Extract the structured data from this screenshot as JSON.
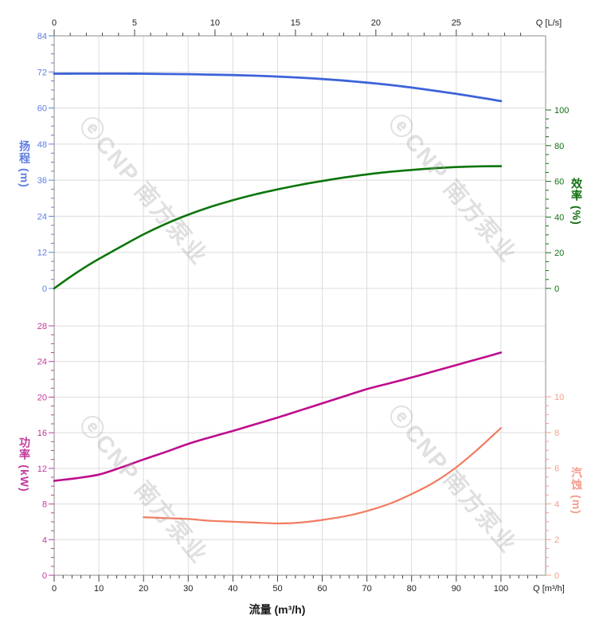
{
  "watermark": {
    "text": "ⓔCNP 南方泵业"
  },
  "colors": {
    "head_curve": "#3d63d9",
    "head_text": "#5e7de2",
    "efficiency_curve": "#0b750b",
    "efficiency_text": "#116f11",
    "power_curve": "#be0d8c",
    "power_text": "#c33a9d",
    "npsh_curve": "#f27b60",
    "npsh_text": "#f59c8e",
    "flow_text": "#222222",
    "grid": "#dcdcdc",
    "frame": "#a0a0a0",
    "dark_tick": "#444444"
  },
  "flow_axis_bottom": {
    "title": "流量 (m³/h)",
    "end_label": "Q [m³/h]",
    "min": 0,
    "max": 110,
    "majors": [
      0,
      10,
      20,
      30,
      40,
      50,
      60,
      70,
      80,
      90,
      100
    ],
    "minor_step": 2
  },
  "flow_axis_top": {
    "end_label": "Q [L/s]",
    "min": 0,
    "max": 30.5,
    "majors": [
      0,
      5,
      10,
      15,
      20,
      25
    ],
    "minor_step": 1
  },
  "head_axis": {
    "title": "扬程 (m)",
    "min": 0,
    "max": 84,
    "majors": [
      0,
      12,
      24,
      36,
      48,
      60,
      72,
      84
    ],
    "minor_step": 3
  },
  "efficiency_axis": {
    "title": "效率 (%)",
    "min": 0,
    "max": 100,
    "majors": [
      0,
      20,
      40,
      60,
      80,
      100
    ],
    "minor_step": 5
  },
  "power_axis": {
    "title": "功率 (kW)",
    "min": 0,
    "max": 28,
    "majors": [
      0,
      4,
      8,
      12,
      16,
      20,
      24,
      28
    ],
    "minor_step": 1
  },
  "npsh_axis": {
    "title": "汽蚀 (m)",
    "min": 0,
    "max": 10,
    "majors": [
      0,
      2,
      4,
      6,
      8,
      10
    ],
    "minor_step": 0.5
  },
  "chart_data": {
    "type": "line",
    "xlabel": "流量 (m³/h)",
    "x_unit": "m³/h",
    "grid": true,
    "legend": "axis-colored, no legend box",
    "panels": [
      {
        "left_axis": "扬程 (m) 0–84",
        "right_axis": "效率 (%) 0–100"
      },
      {
        "left_axis": "功率 (kW) 0–28",
        "right_axis": "汽蚀 (m) 0–10"
      }
    ],
    "series": [
      {
        "name": "扬程",
        "key": "head",
        "panel": 0,
        "scale": "head",
        "color": "#3d63d9",
        "unit": "m",
        "x": [
          0,
          5,
          10,
          15,
          20,
          25,
          30,
          35,
          40,
          45,
          50,
          55,
          60,
          65,
          70,
          75,
          80,
          85,
          90,
          95,
          100
        ],
        "y": [
          71.4,
          71.45,
          71.45,
          71.45,
          71.4,
          71.3,
          71.25,
          71.1,
          70.95,
          70.75,
          70.45,
          70.1,
          69.65,
          69.1,
          68.45,
          67.7,
          66.8,
          65.8,
          64.7,
          63.55,
          62.3
        ]
      },
      {
        "name": "效率",
        "key": "efficiency",
        "panel": 0,
        "scale": "efficiency",
        "color": "#0b750b",
        "unit": "%",
        "x": [
          0,
          2.5,
          5,
          7.5,
          10,
          15,
          20,
          25,
          30,
          35,
          40,
          45,
          50,
          55,
          60,
          65,
          70,
          75,
          80,
          85,
          90,
          95,
          100
        ],
        "y": [
          0,
          4.5,
          8.8,
          12.8,
          16.5,
          23.5,
          30.3,
          36.2,
          41.3,
          45.7,
          49.4,
          52.7,
          55.5,
          58,
          60.2,
          62.2,
          63.9,
          65.3,
          66.4,
          67.3,
          68,
          68.4,
          68.5
        ]
      },
      {
        "name": "功率",
        "key": "power",
        "panel": 1,
        "scale": "power",
        "color": "#be0d8c",
        "unit": "kW",
        "x": [
          0,
          5,
          10,
          15,
          20,
          25,
          30,
          35,
          40,
          45,
          50,
          55,
          60,
          65,
          70,
          75,
          80,
          85,
          90,
          95,
          100
        ],
        "y": [
          10.6,
          10.9,
          11.3,
          12.1,
          13.0,
          13.85,
          14.75,
          15.5,
          16.2,
          16.95,
          17.7,
          18.5,
          19.3,
          20.1,
          20.9,
          21.55,
          22.2,
          22.9,
          23.6,
          24.3,
          25.0
        ]
      },
      {
        "name": "汽蚀",
        "key": "npsh",
        "panel": 1,
        "scale": "npsh",
        "color": "#f27b60",
        "unit": "m",
        "x": [
          20,
          25,
          30,
          35,
          40,
          45,
          50,
          55,
          60,
          65,
          70,
          75,
          80,
          85,
          90,
          95,
          100
        ],
        "y": [
          3.25,
          3.2,
          3.15,
          3.05,
          3.0,
          2.95,
          2.9,
          2.95,
          3.1,
          3.3,
          3.6,
          4.0,
          4.55,
          5.2,
          6.05,
          7.1,
          8.25
        ]
      }
    ]
  }
}
